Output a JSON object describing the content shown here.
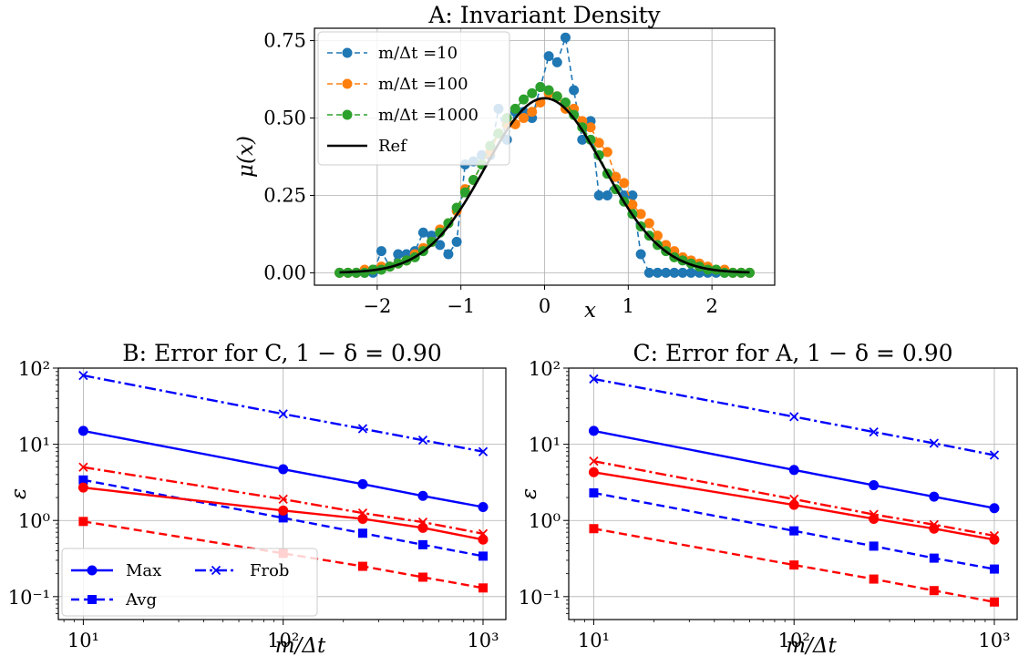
{
  "figure": {
    "background": "#ffffff"
  },
  "colors": {
    "blue_c0": "#1f77b4",
    "orange_c1": "#ff7f0e",
    "green_c2": "#2ca02c",
    "black": "#000000",
    "blue": "#0000ff",
    "red": "#ff0000",
    "grid": "#b0b0b0"
  },
  "chart_data": [
    {
      "id": "A",
      "type": "line",
      "title": "A: Invariant Density",
      "xlabel": "x",
      "ylabel": "μ(x)",
      "xlim": [
        -2.75,
        2.75
      ],
      "ylim": [
        -0.04,
        0.79
      ],
      "xticks": [
        -2,
        -1,
        0,
        1,
        2
      ],
      "xtick_labels": [
        "−2",
        "−1",
        "0",
        "1",
        "2"
      ],
      "yticks": [
        0.0,
        0.25,
        0.5,
        0.75
      ],
      "ytick_labels": [
        "0.00",
        "0.25",
        "0.50",
        "0.75"
      ],
      "grid": true,
      "legend_position": "upper left",
      "series": [
        {
          "name": "m/Δt =10",
          "color": "#1f77b4",
          "marker": "circle",
          "linestyle": "dashed",
          "x": [
            -2.45,
            -2.35,
            -2.25,
            -2.15,
            -2.05,
            -1.95,
            -1.85,
            -1.75,
            -1.65,
            -1.55,
            -1.45,
            -1.35,
            -1.25,
            -1.15,
            -1.05,
            -0.95,
            -0.85,
            -0.75,
            -0.65,
            -0.55,
            -0.45,
            -0.35,
            -0.25,
            -0.15,
            -0.05,
            0.05,
            0.15,
            0.25,
            0.35,
            0.45,
            0.55,
            0.65,
            0.75,
            0.85,
            0.95,
            1.05,
            1.15,
            1.25,
            1.35,
            1.45,
            1.55,
            1.65,
            1.75,
            1.85,
            1.95,
            2.05,
            2.15,
            2.25,
            2.35,
            2.45
          ],
          "y": [
            0.0,
            0.0,
            0.0,
            0.0,
            0.0,
            0.07,
            0.02,
            0.06,
            0.06,
            0.07,
            0.13,
            0.12,
            0.09,
            0.06,
            0.1,
            0.35,
            0.36,
            0.38,
            0.38,
            0.53,
            0.43,
            0.52,
            0.52,
            0.5,
            0.6,
            0.7,
            0.68,
            0.76,
            0.59,
            0.43,
            0.49,
            0.25,
            0.25,
            0.31,
            0.25,
            0.25,
            0.06,
            0.0,
            0.0,
            0.0,
            0.0,
            0.0,
            0.0,
            0.0,
            0.0,
            0.0,
            0.0,
            0.0,
            0.0,
            0.0
          ]
        },
        {
          "name": "m/Δt =100",
          "color": "#ff7f0e",
          "marker": "circle",
          "linestyle": "dashed",
          "x": [
            -2.45,
            -2.35,
            -2.25,
            -2.15,
            -2.05,
            -1.95,
            -1.85,
            -1.75,
            -1.65,
            -1.55,
            -1.45,
            -1.35,
            -1.25,
            -1.15,
            -1.05,
            -0.95,
            -0.85,
            -0.75,
            -0.65,
            -0.55,
            -0.45,
            -0.35,
            -0.25,
            -0.15,
            -0.05,
            0.05,
            0.15,
            0.25,
            0.35,
            0.45,
            0.55,
            0.65,
            0.75,
            0.85,
            0.95,
            1.05,
            1.15,
            1.25,
            1.35,
            1.45,
            1.55,
            1.65,
            1.75,
            1.85,
            1.95,
            2.05,
            2.15,
            2.25,
            2.35,
            2.45
          ],
          "y": [
            0.0,
            0.0,
            0.0,
            0.01,
            0.01,
            0.02,
            0.02,
            0.03,
            0.04,
            0.06,
            0.08,
            0.1,
            0.14,
            0.16,
            0.2,
            0.27,
            0.3,
            0.35,
            0.39,
            0.45,
            0.48,
            0.48,
            0.5,
            0.52,
            0.55,
            0.58,
            0.57,
            0.53,
            0.53,
            0.49,
            0.47,
            0.42,
            0.39,
            0.31,
            0.29,
            0.22,
            0.19,
            0.16,
            0.12,
            0.09,
            0.07,
            0.05,
            0.04,
            0.03,
            0.02,
            0.01,
            0.01,
            0.0,
            0.0,
            0.0
          ]
        },
        {
          "name": "m/Δt =1000",
          "color": "#2ca02c",
          "marker": "circle",
          "linestyle": "dashed",
          "x": [
            -2.45,
            -2.35,
            -2.25,
            -2.15,
            -2.05,
            -1.95,
            -1.85,
            -1.75,
            -1.65,
            -1.55,
            -1.45,
            -1.35,
            -1.25,
            -1.15,
            -1.05,
            -0.95,
            -0.85,
            -0.75,
            -0.65,
            -0.55,
            -0.45,
            -0.35,
            -0.25,
            -0.15,
            -0.05,
            0.05,
            0.15,
            0.25,
            0.35,
            0.45,
            0.55,
            0.65,
            0.75,
            0.85,
            0.95,
            1.05,
            1.15,
            1.25,
            1.35,
            1.45,
            1.55,
            1.65,
            1.75,
            1.85,
            1.95,
            2.05,
            2.15,
            2.25,
            2.35,
            2.45
          ],
          "y": [
            0.0,
            0.0,
            0.0,
            0.0,
            0.01,
            0.01,
            0.02,
            0.03,
            0.04,
            0.05,
            0.07,
            0.1,
            0.13,
            0.16,
            0.21,
            0.26,
            0.3,
            0.35,
            0.41,
            0.45,
            0.5,
            0.53,
            0.56,
            0.58,
            0.6,
            0.59,
            0.57,
            0.55,
            0.51,
            0.47,
            0.43,
            0.38,
            0.32,
            0.27,
            0.23,
            0.19,
            0.15,
            0.12,
            0.09,
            0.07,
            0.05,
            0.04,
            0.03,
            0.02,
            0.01,
            0.01,
            0.0,
            0.0,
            0.0,
            0.0
          ]
        },
        {
          "name": "Ref",
          "color": "#000000",
          "marker": "none",
          "linestyle": "solid",
          "function": "gaussian",
          "amplitude": 0.564,
          "sigma": 0.707
        }
      ]
    },
    {
      "id": "B",
      "type": "line",
      "title": "B: Error for C, 1 − δ = 0.90",
      "xlabel": "m/Δt",
      "ylabel": "ε",
      "xscale": "log",
      "yscale": "log",
      "xlim": [
        7.5,
        1300
      ],
      "ylim": [
        0.05,
        100
      ],
      "xticks": [
        10,
        100,
        1000
      ],
      "xtick_labels": [
        "10¹",
        "10²",
        "10³"
      ],
      "yticks": [
        0.1,
        1,
        10,
        100
      ],
      "ytick_labels": [
        "10⁻¹",
        "10⁰",
        "10¹",
        "10²"
      ],
      "grid": true,
      "legend_position": "lower left",
      "legend": [
        {
          "name": "Max",
          "marker": "circle",
          "linestyle": "solid"
        },
        {
          "name": "Avg",
          "marker": "square",
          "linestyle": "dashed"
        },
        {
          "name": "Frob",
          "marker": "x",
          "linestyle": "dashdot"
        }
      ],
      "x": [
        10,
        100,
        250,
        500,
        1000
      ],
      "series": [
        {
          "name": "Max",
          "color": "#0000ff",
          "marker": "circle",
          "linestyle": "solid",
          "values": [
            15.0,
            4.7,
            3.0,
            2.1,
            1.5
          ]
        },
        {
          "name": "Avg",
          "color": "#0000ff",
          "marker": "square",
          "linestyle": "dashed",
          "values": [
            3.4,
            1.08,
            0.68,
            0.48,
            0.34
          ]
        },
        {
          "name": "Frob",
          "color": "#0000ff",
          "marker": "x",
          "linestyle": "dashdot",
          "values": [
            80.0,
            25.0,
            16.0,
            11.3,
            8.0
          ]
        },
        {
          "name": "Max",
          "color": "#ff0000",
          "marker": "circle",
          "linestyle": "solid",
          "values": [
            2.7,
            1.35,
            1.05,
            0.8,
            0.56
          ]
        },
        {
          "name": "Avg",
          "color": "#ff0000",
          "marker": "square",
          "linestyle": "dashed",
          "values": [
            0.97,
            0.37,
            0.25,
            0.18,
            0.13
          ]
        },
        {
          "name": "Frob",
          "color": "#ff0000",
          "marker": "x",
          "linestyle": "dashdot",
          "values": [
            5.0,
            1.9,
            1.25,
            0.95,
            0.67
          ]
        }
      ]
    },
    {
      "id": "C",
      "type": "line",
      "title": "C: Error for A, 1 − δ = 0.90",
      "xlabel": "m/Δt",
      "ylabel": "ε",
      "xscale": "log",
      "yscale": "log",
      "xlim": [
        7.5,
        1300
      ],
      "ylim": [
        0.05,
        100
      ],
      "xticks": [
        10,
        100,
        1000
      ],
      "xtick_labels": [
        "10¹",
        "10²",
        "10³"
      ],
      "yticks": [
        0.1,
        1,
        10,
        100
      ],
      "ytick_labels": [
        "10⁻¹",
        "10⁰",
        "10¹",
        "10²"
      ],
      "grid": true,
      "x": [
        10,
        100,
        250,
        500,
        1000
      ],
      "series": [
        {
          "name": "Max",
          "color": "#0000ff",
          "marker": "circle",
          "linestyle": "solid",
          "values": [
            15.0,
            4.6,
            2.9,
            2.05,
            1.45
          ]
        },
        {
          "name": "Avg",
          "color": "#0000ff",
          "marker": "square",
          "linestyle": "dashed",
          "values": [
            2.3,
            0.73,
            0.46,
            0.32,
            0.23
          ]
        },
        {
          "name": "Frob",
          "color": "#0000ff",
          "marker": "x",
          "linestyle": "dashdot",
          "values": [
            72.0,
            23.0,
            14.5,
            10.3,
            7.2
          ]
        },
        {
          "name": "Max",
          "color": "#ff0000",
          "marker": "circle",
          "linestyle": "solid",
          "values": [
            4.3,
            1.6,
            1.05,
            0.78,
            0.56
          ]
        },
        {
          "name": "Avg",
          "color": "#ff0000",
          "marker": "square",
          "linestyle": "dashed",
          "values": [
            0.78,
            0.26,
            0.17,
            0.12,
            0.085
          ]
        },
        {
          "name": "Frob",
          "color": "#ff0000",
          "marker": "x",
          "linestyle": "dashdot",
          "values": [
            6.0,
            1.9,
            1.2,
            0.88,
            0.63
          ]
        }
      ]
    }
  ]
}
